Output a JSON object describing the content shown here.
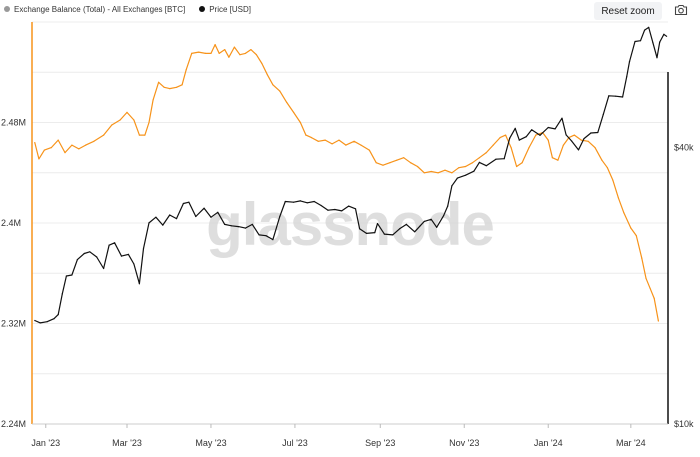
{
  "legend": {
    "items": [
      {
        "label": "Exchange Balance (Total) - All Exchanges [BTC]",
        "color": "#999999"
      },
      {
        "label": "Price [USD]",
        "color": "#111111"
      }
    ]
  },
  "toolbar": {
    "reset_zoom_label": "Reset zoom",
    "camera_icon": "camera-icon"
  },
  "watermark": "glassnode",
  "chart_data": {
    "type": "line",
    "grid": "horizontal",
    "x_ticks": [
      "Jan '23",
      "Mar '23",
      "May '23",
      "Jul '23",
      "Sep '23",
      "Nov '23",
      "Jan '24",
      "Mar '24"
    ],
    "x_range": [
      "2022-12-22",
      "2024-03-28"
    ],
    "y_left": {
      "ticks": [
        "2.24M",
        "2.32M",
        "2.4M",
        "2.48M"
      ],
      "tick_values": [
        2240000,
        2320000,
        2400000,
        2480000
      ],
      "range": [
        2240000,
        2560000
      ],
      "scale": "linear",
      "axis_color": "#f7931a"
    },
    "y_right": {
      "ticks": [
        "$10k",
        "$40k"
      ],
      "tick_values": [
        10000,
        40000
      ],
      "range": [
        10000,
        75000
      ],
      "scale": "log",
      "axis_color": "#111111"
    },
    "series": [
      {
        "name": "Exchange Balance (Total) - All Exchanges [BTC]",
        "axis": "left",
        "color": "#f7931a",
        "points": [
          [
            "2022-12-24",
            2464000
          ],
          [
            "2022-12-27",
            2451000
          ],
          [
            "2022-12-31",
            2458000
          ],
          [
            "2023-01-05",
            2460000
          ],
          [
            "2023-01-10",
            2466000
          ],
          [
            "2023-01-15",
            2456000
          ],
          [
            "2023-01-20",
            2462000
          ],
          [
            "2023-01-25",
            2459000
          ],
          [
            "2023-01-30",
            2462000
          ],
          [
            "2023-02-05",
            2465000
          ],
          [
            "2023-02-12",
            2470000
          ],
          [
            "2023-02-18",
            2478000
          ],
          [
            "2023-02-24",
            2482000
          ],
          [
            "2023-03-01",
            2488000
          ],
          [
            "2023-03-06",
            2482000
          ],
          [
            "2023-03-10",
            2470000
          ],
          [
            "2023-03-14",
            2470000
          ],
          [
            "2023-03-17",
            2480000
          ],
          [
            "2023-03-20",
            2498000
          ],
          [
            "2023-03-24",
            2512000
          ],
          [
            "2023-03-28",
            2508000
          ],
          [
            "2023-04-01",
            2507000
          ],
          [
            "2023-04-06",
            2508000
          ],
          [
            "2023-04-10",
            2510000
          ],
          [
            "2023-04-13",
            2522000
          ],
          [
            "2023-04-17",
            2535000
          ],
          [
            "2023-04-22",
            2536000
          ],
          [
            "2023-04-27",
            2535000
          ],
          [
            "2023-05-01",
            2535000
          ],
          [
            "2023-05-04",
            2542000
          ],
          [
            "2023-05-07",
            2535000
          ],
          [
            "2023-05-11",
            2538000
          ],
          [
            "2023-05-14",
            2532000
          ],
          [
            "2023-05-18",
            2540000
          ],
          [
            "2023-05-22",
            2534000
          ],
          [
            "2023-05-26",
            2535000
          ],
          [
            "2023-05-30",
            2538000
          ],
          [
            "2023-06-03",
            2534000
          ],
          [
            "2023-06-07",
            2527000
          ],
          [
            "2023-06-11",
            2518000
          ],
          [
            "2023-06-15",
            2510000
          ],
          [
            "2023-06-20",
            2505000
          ],
          [
            "2023-06-25",
            2496000
          ],
          [
            "2023-06-30",
            2488000
          ],
          [
            "2023-07-05",
            2480000
          ],
          [
            "2023-07-09",
            2470000
          ],
          [
            "2023-07-13",
            2468000
          ],
          [
            "2023-07-18",
            2465000
          ],
          [
            "2023-07-23",
            2466000
          ],
          [
            "2023-07-28",
            2463000
          ],
          [
            "2023-08-02",
            2466000
          ],
          [
            "2023-08-07",
            2462000
          ],
          [
            "2023-08-13",
            2465000
          ],
          [
            "2023-08-18",
            2462000
          ],
          [
            "2023-08-24",
            2458000
          ],
          [
            "2023-08-29",
            2448000
          ],
          [
            "2023-09-03",
            2446000
          ],
          [
            "2023-09-08",
            2448000
          ],
          [
            "2023-09-13",
            2450000
          ],
          [
            "2023-09-18",
            2452000
          ],
          [
            "2023-09-23",
            2448000
          ],
          [
            "2023-09-28",
            2445000
          ],
          [
            "2023-10-03",
            2440000
          ],
          [
            "2023-10-08",
            2441000
          ],
          [
            "2023-10-13",
            2440000
          ],
          [
            "2023-10-18",
            2442000
          ],
          [
            "2023-10-23",
            2440000
          ],
          [
            "2023-10-28",
            2444000
          ],
          [
            "2023-11-02",
            2445000
          ],
          [
            "2023-11-07",
            2448000
          ],
          [
            "2023-11-12",
            2452000
          ],
          [
            "2023-11-17",
            2456000
          ],
          [
            "2023-11-22",
            2462000
          ],
          [
            "2023-11-27",
            2468000
          ],
          [
            "2023-12-01",
            2470000
          ],
          [
            "2023-12-05",
            2460000
          ],
          [
            "2023-12-09",
            2445000
          ],
          [
            "2023-12-13",
            2448000
          ],
          [
            "2023-12-18",
            2460000
          ],
          [
            "2023-12-23",
            2470000
          ],
          [
            "2023-12-28",
            2472000
          ],
          [
            "2024-01-01",
            2466000
          ],
          [
            "2024-01-04",
            2452000
          ],
          [
            "2024-01-08",
            2450000
          ],
          [
            "2024-01-12",
            2462000
          ],
          [
            "2024-01-16",
            2468000
          ],
          [
            "2024-01-20",
            2470000
          ],
          [
            "2024-01-25",
            2466000
          ],
          [
            "2024-01-30",
            2465000
          ],
          [
            "2024-02-04",
            2460000
          ],
          [
            "2024-02-09",
            2450000
          ],
          [
            "2024-02-13",
            2444000
          ],
          [
            "2024-02-17",
            2434000
          ],
          [
            "2024-02-21",
            2420000
          ],
          [
            "2024-02-25",
            2408000
          ],
          [
            "2024-03-01",
            2396000
          ],
          [
            "2024-03-05",
            2390000
          ],
          [
            "2024-03-09",
            2372000
          ],
          [
            "2024-03-12",
            2356000
          ],
          [
            "2024-03-15",
            2348000
          ],
          [
            "2024-03-18",
            2340000
          ],
          [
            "2024-03-21",
            2322000
          ]
        ]
      },
      {
        "name": "Price [USD]",
        "axis": "right",
        "color": "#111111",
        "points": [
          [
            "2022-12-24",
            16800
          ],
          [
            "2022-12-28",
            16600
          ],
          [
            "2023-01-02",
            16700
          ],
          [
            "2023-01-07",
            16950
          ],
          [
            "2023-01-10",
            17300
          ],
          [
            "2023-01-13",
            19200
          ],
          [
            "2023-01-16",
            21000
          ],
          [
            "2023-01-20",
            21100
          ],
          [
            "2023-01-24",
            22800
          ],
          [
            "2023-01-29",
            23500
          ],
          [
            "2023-02-02",
            23700
          ],
          [
            "2023-02-07",
            23100
          ],
          [
            "2023-02-12",
            21800
          ],
          [
            "2023-02-16",
            24500
          ],
          [
            "2023-02-20",
            24800
          ],
          [
            "2023-02-25",
            23200
          ],
          [
            "2023-03-02",
            23400
          ],
          [
            "2023-03-06",
            22300
          ],
          [
            "2023-03-10",
            20200
          ],
          [
            "2023-03-13",
            24100
          ],
          [
            "2023-03-17",
            27400
          ],
          [
            "2023-03-22",
            28200
          ],
          [
            "2023-03-27",
            27100
          ],
          [
            "2023-04-01",
            28500
          ],
          [
            "2023-04-06",
            28000
          ],
          [
            "2023-04-11",
            30200
          ],
          [
            "2023-04-15",
            30400
          ],
          [
            "2023-04-20",
            28300
          ],
          [
            "2023-04-26",
            29500
          ],
          [
            "2023-05-01",
            28200
          ],
          [
            "2023-05-06",
            28900
          ],
          [
            "2023-05-11",
            27200
          ],
          [
            "2023-05-16",
            27000
          ],
          [
            "2023-05-21",
            26900
          ],
          [
            "2023-05-26",
            26700
          ],
          [
            "2023-05-31",
            27200
          ],
          [
            "2023-06-05",
            25800
          ],
          [
            "2023-06-10",
            25700
          ],
          [
            "2023-06-15",
            25200
          ],
          [
            "2023-06-20",
            28300
          ],
          [
            "2023-06-24",
            30500
          ],
          [
            "2023-06-30",
            30400
          ],
          [
            "2023-07-05",
            30600
          ],
          [
            "2023-07-10",
            30300
          ],
          [
            "2023-07-15",
            30500
          ],
          [
            "2023-07-20",
            29900
          ],
          [
            "2023-07-25",
            29200
          ],
          [
            "2023-07-30",
            29300
          ],
          [
            "2023-08-04",
            29100
          ],
          [
            "2023-08-09",
            29800
          ],
          [
            "2023-08-14",
            29400
          ],
          [
            "2023-08-17",
            26600
          ],
          [
            "2023-08-22",
            26000
          ],
          [
            "2023-08-28",
            26100
          ],
          [
            "2023-08-30",
            27300
          ],
          [
            "2023-09-04",
            25900
          ],
          [
            "2023-09-10",
            25800
          ],
          [
            "2023-09-15",
            26600
          ],
          [
            "2023-09-20",
            27200
          ],
          [
            "2023-09-26",
            26200
          ],
          [
            "2023-09-30",
            27000
          ],
          [
            "2023-10-03",
            27600
          ],
          [
            "2023-10-08",
            27900
          ],
          [
            "2023-10-12",
            26800
          ],
          [
            "2023-10-17",
            28400
          ],
          [
            "2023-10-20",
            29800
          ],
          [
            "2023-10-23",
            33000
          ],
          [
            "2023-10-27",
            34300
          ],
          [
            "2023-11-02",
            34800
          ],
          [
            "2023-11-08",
            35500
          ],
          [
            "2023-11-12",
            37100
          ],
          [
            "2023-11-17",
            36500
          ],
          [
            "2023-11-24",
            37700
          ],
          [
            "2023-11-30",
            37800
          ],
          [
            "2023-12-04",
            41900
          ],
          [
            "2023-12-08",
            44000
          ],
          [
            "2023-12-11",
            41500
          ],
          [
            "2023-12-16",
            42200
          ],
          [
            "2023-12-20",
            43700
          ],
          [
            "2023-12-26",
            42500
          ],
          [
            "2024-01-01",
            44200
          ],
          [
            "2024-01-06",
            43900
          ],
          [
            "2024-01-11",
            46300
          ],
          [
            "2024-01-14",
            42600
          ],
          [
            "2024-01-18",
            41300
          ],
          [
            "2024-01-23",
            39500
          ],
          [
            "2024-01-27",
            41800
          ],
          [
            "2024-02-01",
            43000
          ],
          [
            "2024-02-06",
            43100
          ],
          [
            "2024-02-10",
            47200
          ],
          [
            "2024-02-14",
            51800
          ],
          [
            "2024-02-19",
            51700
          ],
          [
            "2024-02-24",
            51500
          ],
          [
            "2024-02-27",
            57000
          ],
          [
            "2024-02-29",
            61500
          ],
          [
            "2024-03-04",
            68000
          ],
          [
            "2024-03-08",
            68300
          ],
          [
            "2024-03-11",
            72000
          ],
          [
            "2024-03-14",
            73000
          ],
          [
            "2024-03-17",
            67600
          ],
          [
            "2024-03-20",
            62700
          ],
          [
            "2024-03-22",
            67800
          ],
          [
            "2024-03-25",
            70500
          ],
          [
            "2024-03-27",
            69800
          ]
        ]
      }
    ]
  }
}
